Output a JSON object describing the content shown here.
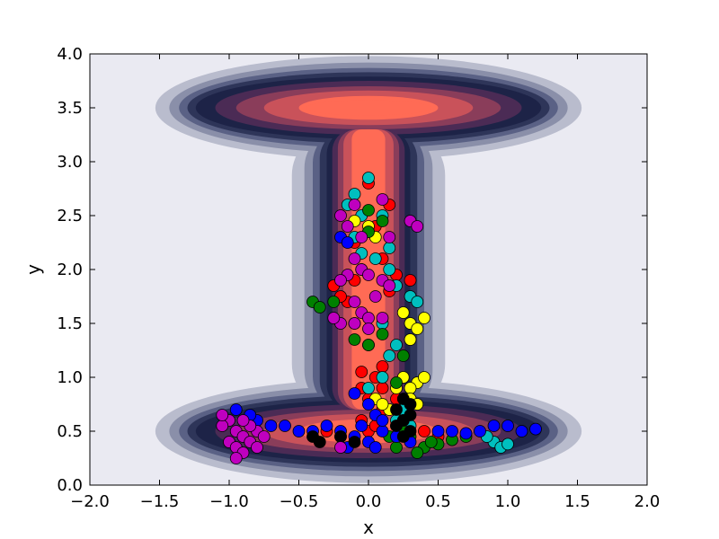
{
  "chart_data": {
    "type": "scatter",
    "title": "",
    "xlabel": "x",
    "ylabel": "y",
    "xlim": [
      -2.0,
      2.0
    ],
    "ylim": [
      0.0,
      4.0
    ],
    "xticks": [
      "−2.0",
      "−1.5",
      "−1.0",
      "−0.5",
      "0.0",
      "0.5",
      "1.0",
      "1.5",
      "2.0"
    ],
    "xtick_values": [
      -2.0,
      -1.5,
      -1.0,
      -0.5,
      0.0,
      0.5,
      1.0,
      1.5,
      2.0
    ],
    "yticks": [
      "0.0",
      "0.5",
      "1.0",
      "1.5",
      "2.0",
      "2.5",
      "3.0",
      "3.5",
      "4.0"
    ],
    "ytick_values": [
      0.0,
      0.5,
      1.0,
      1.5,
      2.0,
      2.5,
      3.0,
      3.5,
      4.0
    ],
    "grid": false,
    "background": {
      "type": "filled-contour",
      "description_colors": [
        "#eaeaf2",
        "#b9bccd",
        "#8a8fa9",
        "#5a6185",
        "#2e3559",
        "#1d2347",
        "#4b2b55",
        "#8a3d5a",
        "#c9525a",
        "#ff6b55"
      ],
      "wells": [
        {
          "x0": 0.0,
          "y0": 3.5,
          "note": "upper well"
        },
        {
          "x0": 0.0,
          "y0": 0.5,
          "note": "lower well"
        }
      ]
    },
    "series": [
      {
        "color": "#ff0000",
        "points": [
          [
            0.0,
            0.5
          ],
          [
            0.05,
            0.55
          ],
          [
            -0.05,
            0.6
          ],
          [
            0.1,
            0.7
          ],
          [
            0.0,
            0.8
          ],
          [
            -0.05,
            0.9
          ],
          [
            0.05,
            1.0
          ],
          [
            0.1,
            1.1
          ],
          [
            0.0,
            1.3
          ],
          [
            -0.1,
            1.5
          ],
          [
            -0.15,
            1.7
          ],
          [
            -0.1,
            1.9
          ],
          [
            -0.05,
            2.0
          ],
          [
            0.1,
            2.1
          ],
          [
            0.2,
            1.95
          ],
          [
            0.15,
            1.8
          ],
          [
            -0.2,
            1.75
          ],
          [
            -0.25,
            1.85
          ],
          [
            0.3,
            1.9
          ],
          [
            -0.1,
            2.25
          ],
          [
            0.05,
            2.4
          ],
          [
            0.15,
            2.6
          ],
          [
            0.0,
            2.8
          ],
          [
            -0.3,
            0.5
          ],
          [
            -0.2,
            0.45
          ],
          [
            0.2,
            0.55
          ],
          [
            0.4,
            0.5
          ],
          [
            0.5,
            0.45
          ],
          [
            -0.05,
            1.05
          ],
          [
            0.1,
            0.9
          ],
          [
            0.2,
            0.8
          ]
        ]
      },
      {
        "color": "#00bfbf",
        "points": [
          [
            0.0,
            2.85
          ],
          [
            -0.1,
            2.7
          ],
          [
            -0.15,
            2.6
          ],
          [
            0.1,
            2.5
          ],
          [
            0.15,
            2.2
          ],
          [
            0.05,
            2.1
          ],
          [
            -0.1,
            2.3
          ],
          [
            -0.05,
            2.15
          ],
          [
            0.2,
            1.85
          ],
          [
            0.3,
            1.75
          ],
          [
            0.35,
            1.7
          ],
          [
            0.1,
            1.5
          ],
          [
            0.2,
            1.3
          ],
          [
            0.15,
            1.2
          ],
          [
            0.1,
            1.0
          ],
          [
            0.0,
            0.9
          ],
          [
            0.9,
            0.4
          ],
          [
            0.95,
            0.35
          ],
          [
            1.0,
            0.38
          ],
          [
            0.85,
            0.45
          ],
          [
            0.2,
            0.6
          ],
          [
            0.3,
            0.55
          ],
          [
            0.25,
            0.7
          ],
          [
            -0.05,
            2.5
          ],
          [
            0.0,
            2.35
          ],
          [
            0.15,
            2.0
          ]
        ]
      },
      {
        "color": "#ffff00",
        "points": [
          [
            0.3,
            1.5
          ],
          [
            0.35,
            1.45
          ],
          [
            0.4,
            1.55
          ],
          [
            0.3,
            1.35
          ],
          [
            0.25,
            1.6
          ],
          [
            0.25,
            1.0
          ],
          [
            0.35,
            0.95
          ],
          [
            0.4,
            1.0
          ],
          [
            0.2,
            0.9
          ],
          [
            0.3,
            0.9
          ],
          [
            0.0,
            2.4
          ],
          [
            0.05,
            2.3
          ],
          [
            -0.1,
            2.45
          ],
          [
            0.3,
            0.8
          ],
          [
            0.35,
            0.75
          ],
          [
            0.15,
            0.7
          ],
          [
            0.05,
            0.8
          ],
          [
            0.1,
            0.75
          ],
          [
            0.25,
            0.6
          ]
        ]
      },
      {
        "color": "#008000",
        "points": [
          [
            -0.4,
            1.7
          ],
          [
            -0.35,
            1.65
          ],
          [
            -0.25,
            1.7
          ],
          [
            0.0,
            2.55
          ],
          [
            0.1,
            2.45
          ],
          [
            0.0,
            2.35
          ],
          [
            -0.1,
            1.35
          ],
          [
            0.0,
            1.3
          ],
          [
            0.1,
            1.4
          ],
          [
            0.25,
            1.2
          ],
          [
            0.2,
            0.95
          ],
          [
            0.4,
            0.35
          ],
          [
            0.5,
            0.38
          ],
          [
            0.6,
            0.42
          ],
          [
            0.7,
            0.45
          ],
          [
            0.35,
            0.3
          ],
          [
            0.3,
            0.45
          ],
          [
            0.45,
            0.4
          ],
          [
            0.2,
            0.35
          ],
          [
            0.15,
            0.45
          ],
          [
            0.25,
            0.5
          ]
        ]
      },
      {
        "color": "#0000ff",
        "points": [
          [
            -0.2,
            2.3
          ],
          [
            -0.15,
            2.25
          ],
          [
            -0.1,
            0.85
          ],
          [
            0.0,
            0.75
          ],
          [
            0.05,
            0.65
          ],
          [
            -0.2,
            0.5
          ],
          [
            -0.1,
            0.45
          ],
          [
            0.0,
            0.4
          ],
          [
            0.1,
            0.5
          ],
          [
            0.2,
            0.45
          ],
          [
            -0.3,
            0.55
          ],
          [
            -0.4,
            0.5
          ],
          [
            -0.5,
            0.5
          ],
          [
            -0.6,
            0.55
          ],
          [
            -0.7,
            0.55
          ],
          [
            -0.8,
            0.6
          ],
          [
            -0.85,
            0.65
          ],
          [
            -0.95,
            0.7
          ],
          [
            0.5,
            0.5
          ],
          [
            0.6,
            0.5
          ],
          [
            0.7,
            0.48
          ],
          [
            0.8,
            0.5
          ],
          [
            0.9,
            0.55
          ],
          [
            1.0,
            0.55
          ],
          [
            1.1,
            0.5
          ],
          [
            1.2,
            0.52
          ],
          [
            -0.05,
            0.55
          ],
          [
            0.1,
            0.6
          ],
          [
            -0.15,
            0.35
          ],
          [
            0.05,
            0.35
          ],
          [
            0.3,
            0.4
          ]
        ]
      },
      {
        "color": "#000000",
        "points": [
          [
            0.25,
            0.8
          ],
          [
            0.3,
            0.75
          ],
          [
            0.2,
            0.7
          ],
          [
            0.25,
            0.6
          ],
          [
            0.3,
            0.5
          ],
          [
            0.25,
            0.45
          ],
          [
            -0.2,
            0.45
          ],
          [
            -0.1,
            0.4
          ],
          [
            -0.35,
            0.4
          ],
          [
            -0.4,
            0.45
          ],
          [
            0.2,
            0.55
          ],
          [
            0.3,
            0.65
          ]
        ]
      },
      {
        "color": "#bf00bf",
        "points": [
          [
            -0.2,
            2.5
          ],
          [
            -0.15,
            2.4
          ],
          [
            -0.1,
            2.6
          ],
          [
            0.15,
            2.3
          ],
          [
            0.3,
            2.45
          ],
          [
            0.35,
            2.4
          ],
          [
            -0.1,
            2.1
          ],
          [
            -0.05,
            2.0
          ],
          [
            0.0,
            1.95
          ],
          [
            0.1,
            1.9
          ],
          [
            0.15,
            1.85
          ],
          [
            -0.15,
            1.95
          ],
          [
            -0.2,
            1.9
          ],
          [
            -0.05,
            1.6
          ],
          [
            0.0,
            1.55
          ],
          [
            -0.1,
            1.5
          ],
          [
            -0.2,
            1.5
          ],
          [
            -0.25,
            1.55
          ],
          [
            0.0,
            1.45
          ],
          [
            0.1,
            1.55
          ],
          [
            -1.0,
            0.6
          ],
          [
            -1.05,
            0.55
          ],
          [
            -0.95,
            0.5
          ],
          [
            -0.9,
            0.45
          ],
          [
            -1.0,
            0.4
          ],
          [
            -0.95,
            0.35
          ],
          [
            -0.85,
            0.4
          ],
          [
            -0.8,
            0.5
          ],
          [
            -0.85,
            0.55
          ],
          [
            -0.9,
            0.3
          ],
          [
            -0.95,
            0.25
          ],
          [
            -1.05,
            0.65
          ],
          [
            -0.9,
            0.6
          ],
          [
            -0.8,
            0.35
          ],
          [
            -0.75,
            0.45
          ],
          [
            -0.2,
            0.35
          ],
          [
            -0.1,
            1.7
          ],
          [
            0.05,
            1.75
          ],
          [
            -0.05,
            2.3
          ],
          [
            0.1,
            2.65
          ]
        ]
      }
    ]
  }
}
